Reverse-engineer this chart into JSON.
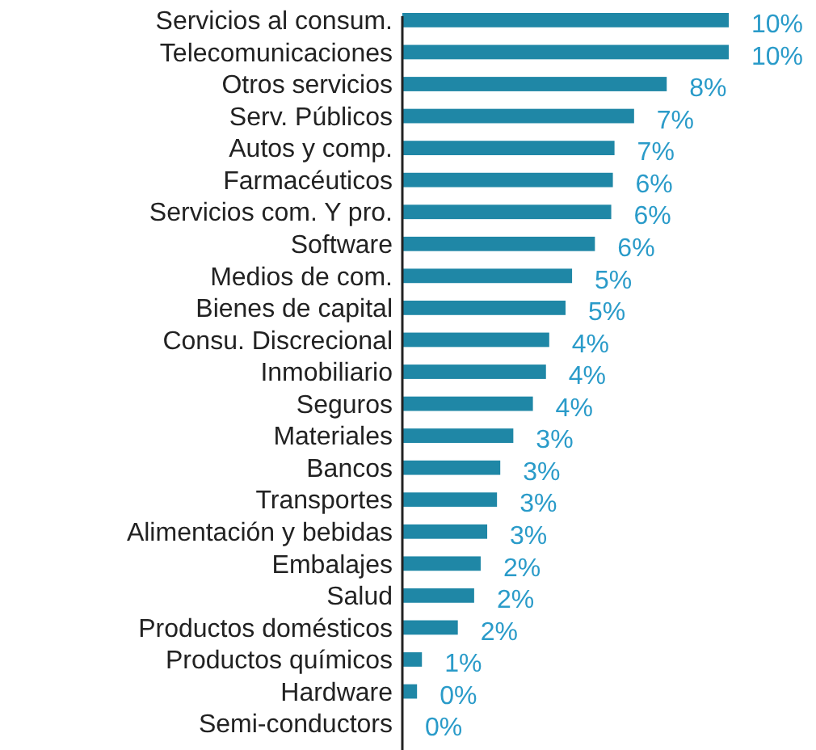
{
  "chart_data": {
    "type": "bar",
    "orientation": "horizontal",
    "xlim": [
      0,
      10
    ],
    "categories": [
      "Servicios al consum.",
      "Telecomunicaciones",
      "Otros servicios",
      "Serv. Públicos",
      "Autos y comp.",
      "Farmacéuticos",
      "Servicios com. Y pro.",
      "Software",
      "Medios de com.",
      "Bienes de capital",
      "Consu. Discrecional",
      "Inmobiliario",
      "Seguros",
      "Materiales ",
      "Bancos",
      "Transportes",
      "Alimentación y bebidas",
      "Embalajes",
      "Salud",
      "Productos domésticos",
      "Productos químicos",
      "Hardware",
      "Semi-conductors"
    ],
    "values": [
      10.0,
      10.0,
      8.1,
      7.1,
      6.5,
      6.45,
      6.4,
      5.9,
      5.2,
      5.0,
      4.5,
      4.4,
      4.0,
      3.4,
      3.0,
      2.9,
      2.6,
      2.4,
      2.2,
      1.7,
      0.6,
      0.45,
      0
    ],
    "value_labels": [
      "10%",
      "10%",
      "8%",
      "7%",
      "7%",
      "6%",
      "6%",
      "6%",
      "5%",
      "5%",
      "4%",
      "4%",
      "4%",
      "3%",
      "3%",
      "3%",
      "3%",
      "2%",
      "2%",
      "2%",
      "1%",
      "0%",
      "0%"
    ],
    "color": "#1f87a6"
  }
}
